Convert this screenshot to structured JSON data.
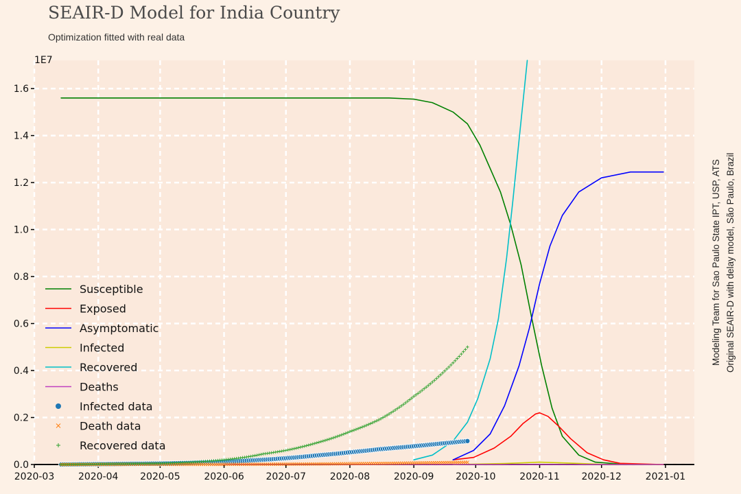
{
  "chart_data": {
    "type": "line",
    "title": "SEAIR-D Model for India Country",
    "subtitle": "Optimization fitted with real data",
    "credits": [
      "Modeling Team for Sao Paulo State IPT, USP, ATS",
      "Original SEAIR-D with delay model, São Paulo, Brazil"
    ],
    "y_multiplier_label": "1E7",
    "xlim": [
      "2020-03-01",
      "2021-01-15"
    ],
    "ylim": [
      0,
      1.72
    ],
    "x_ticks": [
      "2020-03-01",
      "2020-04-01",
      "2020-05-01",
      "2020-06-01",
      "2020-07-01",
      "2020-08-01",
      "2020-09-01",
      "2020-10-01",
      "2020-11-01",
      "2020-12-01",
      "2021-01-01"
    ],
    "x_tick_labels": [
      "2020-03",
      "2020-04",
      "2020-05",
      "2020-06",
      "2020-07",
      "2020-08",
      "2020-09",
      "2020-10",
      "2020-11",
      "2020-12",
      "2021-01"
    ],
    "y_ticks": [
      0,
      0.2,
      0.4,
      0.6,
      0.8,
      1.0,
      1.2,
      1.4,
      1.6
    ],
    "y_tick_labels": [
      "0.0",
      "0.2",
      "0.4",
      "0.6",
      "0.8",
      "1.0",
      "1.2",
      "1.4",
      "1.6"
    ],
    "grid": true,
    "legend_position": "lower-left",
    "series": [
      {
        "name": "Susceptible",
        "kind": "line",
        "color": "#008000",
        "points": [
          [
            "2020-03-14",
            1.56
          ],
          [
            "2020-04-01",
            1.56
          ],
          [
            "2020-05-01",
            1.56
          ],
          [
            "2020-06-01",
            1.56
          ],
          [
            "2020-07-01",
            1.56
          ],
          [
            "2020-08-01",
            1.56
          ],
          [
            "2020-08-20",
            1.56
          ],
          [
            "2020-09-01",
            1.555
          ],
          [
            "2020-09-10",
            1.54
          ],
          [
            "2020-09-20",
            1.5
          ],
          [
            "2020-09-27",
            1.45
          ],
          [
            "2020-10-03",
            1.36
          ],
          [
            "2020-10-08",
            1.26
          ],
          [
            "2020-10-13",
            1.16
          ],
          [
            "2020-10-18",
            1.02
          ],
          [
            "2020-10-23",
            0.85
          ],
          [
            "2020-10-28",
            0.63
          ],
          [
            "2020-11-02",
            0.42
          ],
          [
            "2020-11-07",
            0.24
          ],
          [
            "2020-11-12",
            0.12
          ],
          [
            "2020-11-20",
            0.04
          ],
          [
            "2020-11-28",
            0.01
          ],
          [
            "2020-12-10",
            0.002
          ],
          [
            "2020-12-31",
            0.0
          ]
        ]
      },
      {
        "name": "Exposed",
        "kind": "line",
        "color": "#ff0000",
        "points": [
          [
            "2020-09-20",
            0.02
          ],
          [
            "2020-09-30",
            0.03
          ],
          [
            "2020-10-10",
            0.07
          ],
          [
            "2020-10-18",
            0.12
          ],
          [
            "2020-10-24",
            0.175
          ],
          [
            "2020-10-30",
            0.215
          ],
          [
            "2020-11-01",
            0.22
          ],
          [
            "2020-11-05",
            0.205
          ],
          [
            "2020-11-10",
            0.165
          ],
          [
            "2020-11-16",
            0.11
          ],
          [
            "2020-11-24",
            0.05
          ],
          [
            "2020-12-02",
            0.02
          ],
          [
            "2020-12-10",
            0.005
          ],
          [
            "2020-12-31",
            0.0
          ]
        ]
      },
      {
        "name": "Asymptomatic",
        "kind": "line",
        "color": "#0000ff",
        "points": [
          [
            "2020-09-20",
            0.02
          ],
          [
            "2020-09-30",
            0.06
          ],
          [
            "2020-10-08",
            0.13
          ],
          [
            "2020-10-15",
            0.25
          ],
          [
            "2020-10-22",
            0.42
          ],
          [
            "2020-10-27",
            0.58
          ],
          [
            "2020-11-01",
            0.77
          ],
          [
            "2020-11-06",
            0.93
          ],
          [
            "2020-11-12",
            1.06
          ],
          [
            "2020-11-20",
            1.16
          ],
          [
            "2020-12-01",
            1.22
          ],
          [
            "2020-12-15",
            1.245
          ],
          [
            "2020-12-31",
            1.245
          ]
        ]
      },
      {
        "name": "Infected",
        "kind": "line",
        "color": "#cccc00",
        "points": [
          [
            "2020-09-20",
            0.0
          ],
          [
            "2020-10-15",
            0.004
          ],
          [
            "2020-11-01",
            0.01
          ],
          [
            "2020-11-15",
            0.006
          ],
          [
            "2020-12-01",
            0.001
          ],
          [
            "2020-12-31",
            0.0
          ]
        ]
      },
      {
        "name": "Recovered",
        "kind": "line",
        "color": "#00bfc8",
        "points": [
          [
            "2020-09-01",
            0.02
          ],
          [
            "2020-09-10",
            0.04
          ],
          [
            "2020-09-20",
            0.1
          ],
          [
            "2020-09-27",
            0.18
          ],
          [
            "2020-10-02",
            0.28
          ],
          [
            "2020-10-08",
            0.45
          ],
          [
            "2020-10-12",
            0.62
          ],
          [
            "2020-10-16",
            0.88
          ],
          [
            "2020-10-19",
            1.12
          ],
          [
            "2020-10-22",
            1.38
          ],
          [
            "2020-10-24",
            1.55
          ],
          [
            "2020-10-26",
            1.72
          ]
        ]
      },
      {
        "name": "Deaths",
        "kind": "line",
        "color": "#c040c0",
        "points": [
          [
            "2020-03-14",
            0.0
          ],
          [
            "2020-12-31",
            0.0
          ]
        ]
      },
      {
        "name": "Infected data",
        "kind": "scatter",
        "marker": "circle",
        "color": "#1f77b4",
        "points": [
          [
            "2020-03-14",
            0.0
          ],
          [
            "2020-05-01",
            0.004
          ],
          [
            "2020-06-01",
            0.012
          ],
          [
            "2020-06-15",
            0.018
          ],
          [
            "2020-07-01",
            0.027
          ],
          [
            "2020-07-15",
            0.038
          ],
          [
            "2020-08-01",
            0.052
          ],
          [
            "2020-08-15",
            0.065
          ],
          [
            "2020-09-01",
            0.078
          ],
          [
            "2020-09-15",
            0.09
          ],
          [
            "2020-09-27",
            0.1
          ]
        ]
      },
      {
        "name": "Death data",
        "kind": "scatter",
        "marker": "x",
        "color": "#ff7f0e",
        "points": [
          [
            "2020-03-14",
            0.0
          ],
          [
            "2020-06-01",
            0.0006
          ],
          [
            "2020-07-01",
            0.0015
          ],
          [
            "2020-08-01",
            0.0035
          ],
          [
            "2020-09-01",
            0.0065
          ],
          [
            "2020-09-27",
            0.0095
          ]
        ]
      },
      {
        "name": "Recovered data",
        "kind": "scatter",
        "marker": "plus",
        "color": "#2ca02c",
        "points": [
          [
            "2020-03-14",
            0.0
          ],
          [
            "2020-05-01",
            0.005
          ],
          [
            "2020-06-01",
            0.02
          ],
          [
            "2020-06-20",
            0.045
          ],
          [
            "2020-07-01",
            0.06
          ],
          [
            "2020-07-15",
            0.09
          ],
          [
            "2020-08-01",
            0.14
          ],
          [
            "2020-08-15",
            0.19
          ],
          [
            "2020-09-01",
            0.29
          ],
          [
            "2020-09-15",
            0.39
          ],
          [
            "2020-09-27",
            0.5
          ]
        ]
      }
    ]
  }
}
